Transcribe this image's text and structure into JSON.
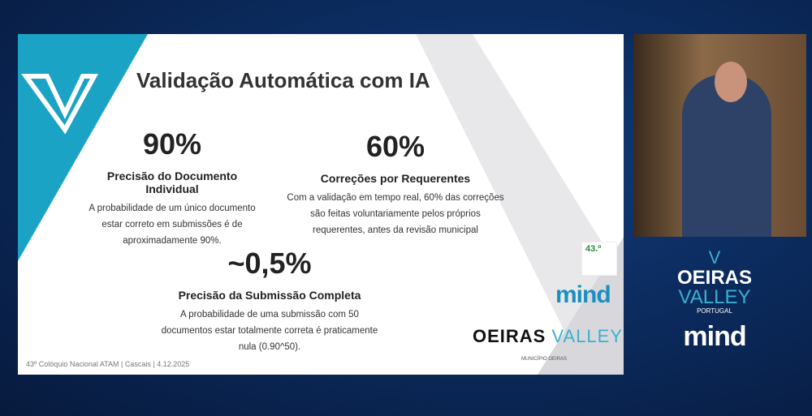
{
  "slide": {
    "title": "Validação Automática com IA",
    "stats": [
      {
        "value": "90%",
        "heading": "Precisão do Documento Individual",
        "text": [
          "A probabilidade de um único documento",
          "estar correto em submissões é de",
          "aproximadamente 90%."
        ]
      },
      {
        "value": "60%",
        "heading": "Correções por Requerentes",
        "text": [
          "Com a validação em tempo real, 60% das correções",
          "são feitas voluntariamente pelos próprios",
          "requerentes, antes da revisão municipal"
        ]
      },
      {
        "value": "~0,5%",
        "heading": "Precisão da Submissão Completa",
        "text": [
          "A probabilidade de uma submissão com 50",
          "documentos estar totalmente correta é praticamente",
          "nula (0.90^50)."
        ]
      }
    ],
    "footer": "43º Colóquio Nacional ATAM | Cascais | 4.12.2025",
    "atam_badge": "43.º",
    "mind_logo": "mind",
    "oeiras_logo": {
      "bold": "OEIRAS",
      "light": "VALLEY"
    },
    "municipio": "MUNICÍPIO OEIRAS"
  },
  "sidebar": {
    "logo_line1": "OEIRAS",
    "logo_line2": "VALLEY",
    "logo_line3": "PORTUGAL",
    "mind_logo": "mind"
  },
  "colors": {
    "accent": "#1aa3c4",
    "background": "#0b2a5c"
  }
}
